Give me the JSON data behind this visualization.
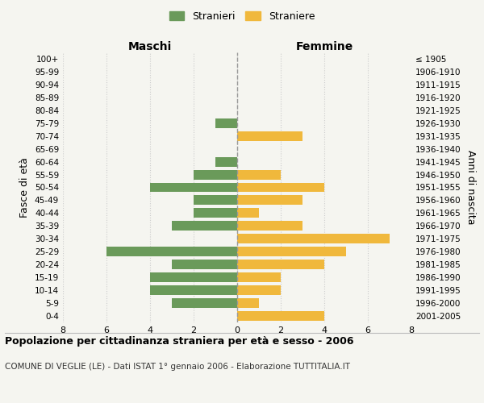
{
  "age_groups": [
    "0-4",
    "5-9",
    "10-14",
    "15-19",
    "20-24",
    "25-29",
    "30-34",
    "35-39",
    "40-44",
    "45-49",
    "50-54",
    "55-59",
    "60-64",
    "65-69",
    "70-74",
    "75-79",
    "80-84",
    "85-89",
    "90-94",
    "95-99",
    "100+"
  ],
  "birth_years": [
    "2001-2005",
    "1996-2000",
    "1991-1995",
    "1986-1990",
    "1981-1985",
    "1976-1980",
    "1971-1975",
    "1966-1970",
    "1961-1965",
    "1956-1960",
    "1951-1955",
    "1946-1950",
    "1941-1945",
    "1936-1940",
    "1931-1935",
    "1926-1930",
    "1921-1925",
    "1916-1920",
    "1911-1915",
    "1906-1910",
    "≤ 1905"
  ],
  "maschi": [
    0,
    3,
    4,
    4,
    3,
    6,
    0,
    3,
    2,
    2,
    4,
    2,
    1,
    0,
    0,
    1,
    0,
    0,
    0,
    0,
    0
  ],
  "femmine": [
    4,
    1,
    2,
    2,
    4,
    5,
    7,
    3,
    1,
    3,
    4,
    2,
    0,
    0,
    3,
    0,
    0,
    0,
    0,
    0,
    0
  ],
  "male_color": "#6a9a5a",
  "female_color": "#f0b83c",
  "background_color": "#f5f5f0",
  "grid_color": "#cccccc",
  "center_line_color": "#999999",
  "title": "Popolazione per cittadinanza straniera per età e sesso - 2006",
  "subtitle": "COMUNE DI VEGLIE (LE) - Dati ISTAT 1° gennaio 2006 - Elaborazione TUTTITALIA.IT",
  "xlabel_left": "Maschi",
  "xlabel_right": "Femmine",
  "ylabel_left": "Fasce di età",
  "ylabel_right": "Anni di nascita",
  "legend_male": "Stranieri",
  "legend_female": "Straniere",
  "xlim": 8
}
